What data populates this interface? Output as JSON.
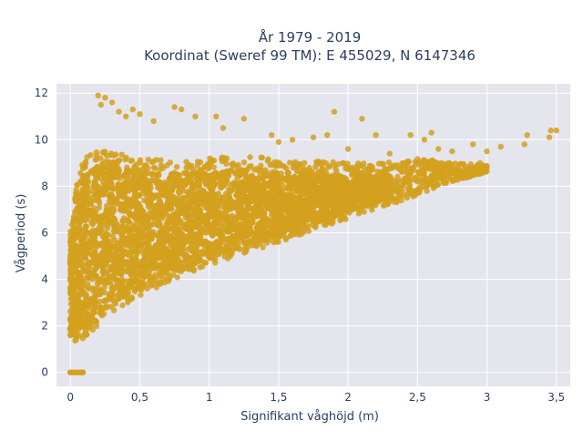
{
  "chart_data": {
    "type": "scatter",
    "title": "År 1979 - 2019",
    "subtitle": "Koordinat (Sweref 99 TM): E 455029, N 6147346",
    "xlabel": "Signifikant våghöjd (m)",
    "ylabel": "Vågperiod (s)",
    "xlim": [
      -0.1,
      3.6
    ],
    "ylim": [
      -0.6,
      12.4
    ],
    "x_ticks": [
      0,
      0.5,
      1,
      1.5,
      2,
      2.5,
      3,
      3.5
    ],
    "x_tick_labels": [
      "0",
      "0,5",
      "1",
      "1,5",
      "2",
      "2,5",
      "3",
      "3,5"
    ],
    "y_ticks": [
      0,
      2,
      4,
      6,
      8,
      10,
      12
    ],
    "y_tick_labels": [
      "0",
      "2",
      "4",
      "6",
      "8",
      "10",
      "12"
    ],
    "grid": true,
    "marker_color": "#D4A11E",
    "background_color": "#E5E5EE",
    "cloud_envelope": {
      "x": [
        0,
        0.05,
        0.1,
        0.2,
        0.3,
        0.5,
        0.75,
        1.0,
        1.25,
        1.5,
        1.75,
        2.0,
        2.25,
        2.5,
        2.75,
        3.0
      ],
      "y_low": [
        1.5,
        1.3,
        1.5,
        2.0,
        2.6,
        3.3,
        4.0,
        4.6,
        5.1,
        5.6,
        6.1,
        6.6,
        7.1,
        7.6,
        8.2,
        8.6
      ],
      "y_high": [
        6.0,
        8.2,
        9.3,
        9.5,
        9.5,
        9.2,
        9.1,
        9.2,
        9.3,
        9.2,
        9.1,
        9.0,
        9.0,
        9.2,
        9.0,
        8.9
      ]
    },
    "outliers": [
      [
        0.2,
        11.9
      ],
      [
        0.25,
        11.8
      ],
      [
        0.22,
        11.5
      ],
      [
        0.3,
        11.6
      ],
      [
        0.35,
        11.2
      ],
      [
        0.4,
        11.0
      ],
      [
        0.45,
        11.3
      ],
      [
        0.5,
        11.1
      ],
      [
        0.6,
        10.8
      ],
      [
        0.75,
        11.4
      ],
      [
        0.8,
        11.3
      ],
      [
        0.9,
        11.0
      ],
      [
        1.05,
        11.0
      ],
      [
        1.1,
        10.5
      ],
      [
        1.25,
        10.9
      ],
      [
        1.45,
        10.2
      ],
      [
        1.6,
        10.0
      ],
      [
        1.75,
        10.1
      ],
      [
        1.85,
        10.2
      ],
      [
        1.9,
        11.2
      ],
      [
        2.1,
        10.9
      ],
      [
        2.2,
        10.2
      ],
      [
        2.45,
        10.2
      ],
      [
        2.55,
        10.0
      ],
      [
        2.6,
        10.3
      ],
      [
        2.65,
        9.6
      ],
      [
        2.75,
        9.5
      ],
      [
        2.9,
        9.8
      ],
      [
        3.0,
        9.5
      ],
      [
        3.1,
        9.7
      ],
      [
        3.27,
        9.8
      ],
      [
        3.29,
        10.2
      ],
      [
        3.45,
        10.1
      ],
      [
        3.46,
        10.4
      ],
      [
        3.5,
        10.4
      ],
      [
        2.95,
        9.0
      ],
      [
        3.0,
        8.8
      ],
      [
        2.3,
        9.4
      ],
      [
        2.0,
        9.6
      ],
      [
        1.5,
        9.9
      ]
    ],
    "zero_points": [
      [
        0.0,
        0
      ],
      [
        0.02,
        0
      ],
      [
        0.04,
        0
      ],
      [
        0.06,
        0
      ],
      [
        0.08,
        0
      ],
      [
        0.09,
        0
      ]
    ]
  }
}
